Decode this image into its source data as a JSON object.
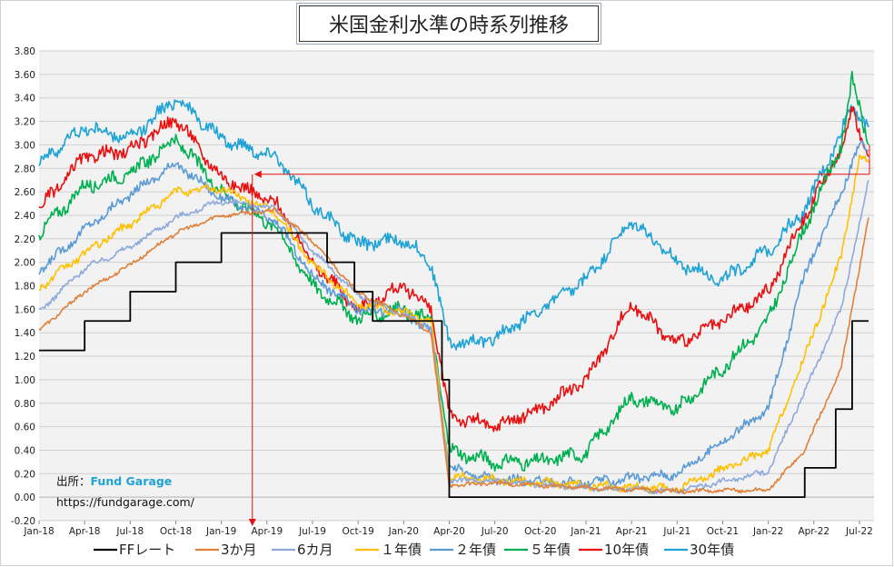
{
  "title": "米国金利水準の時系列推移",
  "credit": {
    "label": "出所：",
    "brand": "Fund Garage",
    "url": "https://fundgarage.com/"
  },
  "chart_data": {
    "type": "line",
    "title": "米国金利水準の時系列推移",
    "xlabel": "",
    "ylabel": "",
    "ylim": [
      -0.2,
      3.8
    ],
    "grid": true,
    "legend_position": "bottom",
    "x_tick_labels": [
      "Jan-18",
      "Apr-18",
      "Jul-18",
      "Oct-18",
      "Jan-19",
      "Apr-19",
      "Jul-19",
      "Oct-19",
      "Jan-20",
      "Apr-20",
      "Jul-20",
      "Oct-20",
      "Jan-21",
      "Apr-21",
      "Jul-21",
      "Oct-21",
      "Jan-22",
      "Apr-22",
      "Jul-22"
    ],
    "y_tick_labels": [
      "-0.20",
      "0.00",
      "0.20",
      "0.40",
      "0.60",
      "0.80",
      "1.00",
      "1.20",
      "1.40",
      "1.60",
      "1.80",
      "2.00",
      "2.20",
      "2.40",
      "2.60",
      "2.80",
      "3.00",
      "3.20",
      "3.40",
      "3.60",
      "3.80"
    ],
    "x_range": [
      "2018-01",
      "2022-07"
    ],
    "series": [
      {
        "name": "FFレート",
        "color": "#000000",
        "step": true,
        "x": [
          2018.0,
          2018.25,
          2018.5,
          2018.75,
          2019.0,
          2019.58,
          2019.73,
          2019.83,
          2020.17,
          2020.21,
          2020.25,
          2022.2,
          2022.37,
          2022.46,
          2022.55
        ],
        "values": [
          1.25,
          1.5,
          1.75,
          2.0,
          2.25,
          2.0,
          1.75,
          1.5,
          1.5,
          1.0,
          0.0,
          0.25,
          0.75,
          1.5,
          1.5
        ]
      },
      {
        "name": "3か月",
        "color": "#e0813a",
        "x": [
          2018.0,
          2018.25,
          2018.5,
          2018.75,
          2019.0,
          2019.3,
          2019.5,
          2019.75,
          2020.0,
          2020.15,
          2020.25,
          2020.5,
          2021.0,
          2021.5,
          2022.0,
          2022.2,
          2022.4,
          2022.55
        ],
        "values": [
          1.42,
          1.75,
          1.98,
          2.25,
          2.4,
          2.44,
          2.18,
          1.74,
          1.55,
          1.4,
          0.1,
          0.12,
          0.08,
          0.05,
          0.06,
          0.4,
          1.1,
          2.38
        ]
      },
      {
        "name": "6カ月",
        "color": "#8eaadb",
        "x": [
          2018.0,
          2018.25,
          2018.5,
          2018.75,
          2019.0,
          2019.3,
          2019.5,
          2019.75,
          2020.0,
          2020.15,
          2020.25,
          2020.5,
          2021.0,
          2021.5,
          2022.0,
          2022.2,
          2022.4,
          2022.55
        ],
        "values": [
          1.58,
          1.95,
          2.13,
          2.38,
          2.52,
          2.46,
          2.1,
          1.72,
          1.55,
          1.45,
          0.15,
          0.13,
          0.08,
          0.05,
          0.22,
          0.9,
          1.6,
          2.7
        ]
      },
      {
        "name": "１年債",
        "color": "#ffc000",
        "x": [
          2018.0,
          2018.25,
          2018.5,
          2018.75,
          2019.0,
          2019.3,
          2019.5,
          2019.75,
          2020.0,
          2020.15,
          2020.25,
          2020.5,
          2021.0,
          2021.5,
          2022.0,
          2022.2,
          2022.4,
          2022.5,
          2022.55
        ],
        "values": [
          1.78,
          2.08,
          2.33,
          2.6,
          2.63,
          2.42,
          1.98,
          1.65,
          1.57,
          1.5,
          0.18,
          0.15,
          0.1,
          0.07,
          0.4,
          1.2,
          2.05,
          2.9,
          2.85
        ]
      },
      {
        "name": "２年債",
        "color": "#5b9bd5",
        "x": [
          2018.0,
          2018.25,
          2018.5,
          2018.75,
          2019.0,
          2019.3,
          2019.5,
          2019.75,
          2020.0,
          2020.15,
          2020.25,
          2020.5,
          2021.0,
          2021.5,
          2022.0,
          2022.2,
          2022.4,
          2022.5,
          2022.55
        ],
        "values": [
          1.92,
          2.28,
          2.58,
          2.84,
          2.55,
          2.35,
          1.88,
          1.6,
          1.58,
          1.4,
          0.25,
          0.15,
          0.12,
          0.2,
          0.75,
          1.9,
          2.6,
          3.0,
          2.95
        ]
      },
      {
        "name": "５年債",
        "color": "#00b050",
        "x": [
          2018.0,
          2018.25,
          2018.5,
          2018.75,
          2019.0,
          2019.3,
          2019.5,
          2019.75,
          2020.0,
          2020.15,
          2020.25,
          2020.5,
          2020.75,
          2021.0,
          2021.25,
          2021.5,
          2021.75,
          2022.0,
          2022.2,
          2022.4,
          2022.46,
          2022.55
        ],
        "values": [
          2.25,
          2.65,
          2.75,
          3.05,
          2.6,
          2.3,
          1.8,
          1.52,
          1.6,
          1.5,
          0.4,
          0.3,
          0.3,
          0.38,
          0.85,
          0.75,
          1.1,
          1.5,
          2.3,
          3.0,
          3.55,
          3.0
        ]
      },
      {
        "name": "10年債",
        "color": "#e81010",
        "x": [
          2018.0,
          2018.25,
          2018.5,
          2018.75,
          2019.0,
          2019.3,
          2019.5,
          2019.75,
          2020.0,
          2020.15,
          2020.25,
          2020.5,
          2020.75,
          2021.0,
          2021.25,
          2021.5,
          2021.75,
          2022.0,
          2022.2,
          2022.4,
          2022.46,
          2022.55
        ],
        "values": [
          2.45,
          2.9,
          2.95,
          3.23,
          2.72,
          2.5,
          2.0,
          1.6,
          1.8,
          1.6,
          0.7,
          0.6,
          0.75,
          1.0,
          1.65,
          1.3,
          1.5,
          1.75,
          2.4,
          2.95,
          3.3,
          2.9
        ]
      },
      {
        "name": "30年債",
        "color": "#1fa3d6",
        "x": [
          2018.0,
          2018.25,
          2018.5,
          2018.75,
          2019.0,
          2019.3,
          2019.5,
          2019.75,
          2020.0,
          2020.15,
          2020.25,
          2020.5,
          2020.75,
          2021.0,
          2021.25,
          2021.5,
          2021.75,
          2022.0,
          2022.2,
          2022.4,
          2022.46,
          2022.55
        ],
        "values": [
          2.85,
          3.15,
          3.05,
          3.4,
          3.05,
          2.9,
          2.5,
          2.15,
          2.2,
          2.0,
          1.3,
          1.35,
          1.6,
          1.85,
          2.35,
          2.0,
          1.85,
          2.1,
          2.45,
          3.1,
          3.35,
          3.15
        ]
      }
    ],
    "annotations": [
      {
        "type": "horizontal-marker",
        "y": 2.75,
        "color": "#e81010"
      },
      {
        "type": "vertical-marker",
        "x": 2019.17,
        "color": "#e81010"
      }
    ]
  }
}
